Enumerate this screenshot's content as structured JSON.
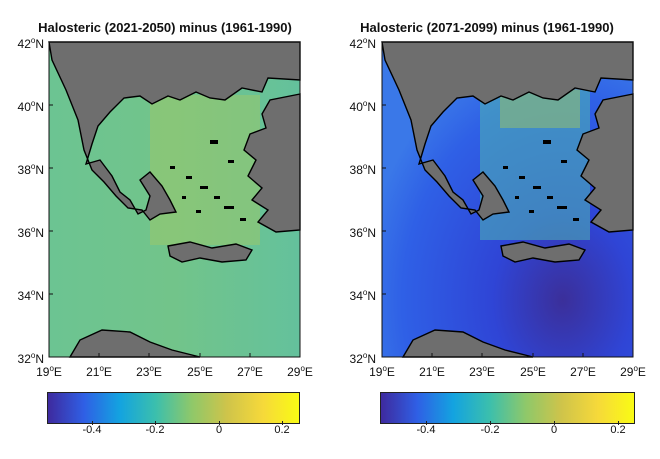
{
  "colorscale": [
    "#3e2a9e",
    "#2f5fe5",
    "#13a3e0",
    "#3bbfad",
    "#8ec86a",
    "#cfc44a",
    "#f6d93a",
    "#f9fb14"
  ],
  "colors": {
    "land": "#6e6e6e",
    "coast": "#000000",
    "shelf": "#ffffff"
  },
  "panels": [
    {
      "title": "Halosteric (2021-2050) minus (1961-1990)",
      "y_ticks": [
        "42",
        "40",
        "38",
        "36",
        "34",
        "32"
      ],
      "x_ticks": [
        "19",
        "21",
        "23",
        "25",
        "27",
        "29"
      ],
      "lat_suffix": "N",
      "lon_suffix": "E",
      "colorbar_ticks": [
        "-0.4",
        "-0.2",
        "0",
        "0.2"
      ]
    },
    {
      "title": "Halosteric (2071-2099) minus (1961-1990)",
      "y_ticks": [
        "42",
        "40",
        "38",
        "36",
        "34",
        "32"
      ],
      "x_ticks": [
        "19",
        "21",
        "23",
        "25",
        "27",
        "29"
      ],
      "lat_suffix": "N",
      "lon_suffix": "E",
      "colorbar_ticks": [
        "-0.4",
        "-0.2",
        "0",
        "0.2"
      ]
    }
  ],
  "chart_data": [
    {
      "type": "heatmap",
      "title": "Halosteric (2021-2050) minus (1961-1990)",
      "xlim": [
        19,
        29
      ],
      "ylim": [
        32,
        42
      ],
      "colorbar_range": [
        -0.56,
        0.24
      ],
      "typical_values": {
        "open_sea": -0.05,
        "aegean_north": 0.05,
        "coastal_south": 0.05
      }
    },
    {
      "type": "heatmap",
      "title": "Halosteric (2071-2099) minus (1961-1990)",
      "xlim": [
        19,
        29
      ],
      "ylim": [
        32,
        42
      ],
      "colorbar_range": [
        -0.56,
        0.24
      ],
      "typical_values": {
        "open_sea": -0.42,
        "aegean_north": -0.1,
        "levantine_southeast": -0.52
      }
    }
  ]
}
